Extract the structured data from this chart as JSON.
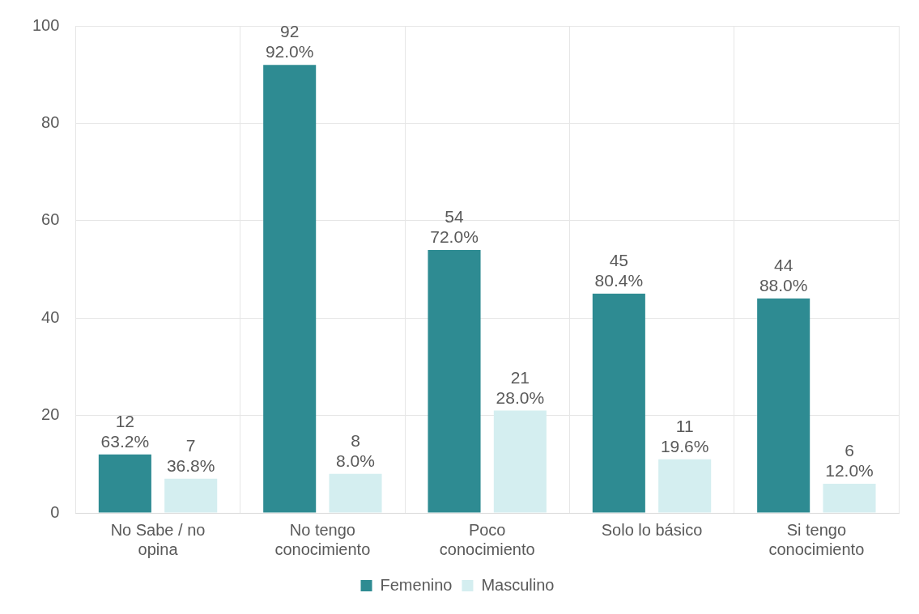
{
  "chart_data": {
    "type": "bar",
    "categories": [
      "No Sabe / no opina",
      "No tengo conocimiento",
      "Poco conocimiento",
      "Solo lo básico",
      "Si tengo conocimiento"
    ],
    "series": [
      {
        "name": "Femenino",
        "color": "#2e8b92",
        "values": [
          12,
          92,
          54,
          45,
          44
        ],
        "value_labels": [
          "12\n63.2%",
          "92\n92.0%",
          "54\n72.0%",
          "45\n80.4%",
          "44\n88.0%"
        ]
      },
      {
        "name": "Masculino",
        "color": "#d4eef0",
        "values": [
          7,
          8,
          21,
          11,
          6
        ],
        "value_labels": [
          "7\n36.8%",
          "8\n8.0%",
          "21\n28.0%",
          "11\n19.6%",
          "6\n12.0%"
        ]
      }
    ],
    "ylim": [
      0,
      100
    ],
    "yticks": [
      0,
      20,
      40,
      60,
      80,
      100
    ],
    "grid": true,
    "legend": "bottom"
  }
}
